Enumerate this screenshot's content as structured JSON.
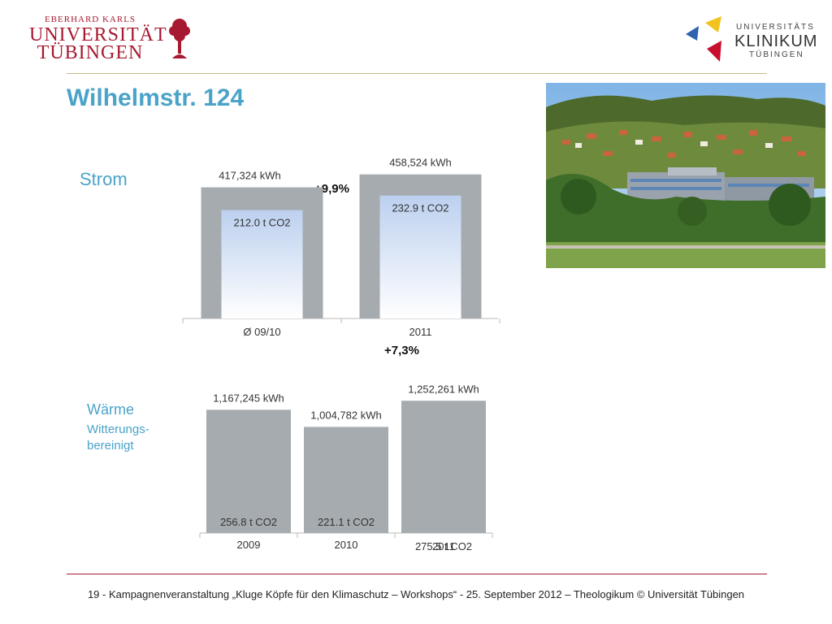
{
  "header": {
    "uni_logo_line1": "EBERHARD KARLS",
    "uni_logo_line2": "UNIVERSITÄT",
    "uni_logo_line3": "TÜBINGEN",
    "klinikum_line1": "UNIVERSITÄTS",
    "klinikum_line2": "KLINIKUM",
    "klinikum_line3": "TÜBINGEN"
  },
  "slide_title": "Wilhelmstr. 124",
  "strom": {
    "label": "Strom",
    "change": "+9,9%"
  },
  "waerme": {
    "label": "Wärme",
    "sublabel_line1": "Witterungs-",
    "sublabel_line2": "bereinigt",
    "change": "+7,3%"
  },
  "chart_data": [
    {
      "type": "bar",
      "categories": [
        "Ø 09/10",
        "2011"
      ],
      "series": [
        {
          "name": "kWh",
          "values": [
            417324,
            458524
          ],
          "labels": [
            "417,324 kWh",
            "458,524 kWh"
          ]
        },
        {
          "name": "t CO2",
          "values": [
            212.0,
            232.9
          ],
          "labels": [
            "212.0 t CO2",
            "232.9 t CO2"
          ]
        }
      ],
      "colors": {
        "kwh": "#a6abaf",
        "co2_top": "#bcd0ef",
        "co2_bottom": "#ffffff"
      }
    },
    {
      "type": "bar",
      "categories": [
        "2009",
        "2010",
        "2011"
      ],
      "series": [
        {
          "name": "kWh",
          "values": [
            1167245,
            1004782,
            1252261
          ],
          "labels": [
            "1,167,245 kWh",
            "1,004,782 kWh",
            "1,252,261 kWh"
          ]
        },
        {
          "name": "t CO2",
          "values": [
            256.8,
            221.1,
            275.5
          ],
          "labels": [
            "256.8 t CO2",
            "221.1 t CO2",
            "275.5 t CO2"
          ]
        }
      ],
      "colors": {
        "kwh": "#a6abaf"
      }
    }
  ],
  "footer": {
    "text": "19 -  Kampagnenveranstaltung „Kluge Köpfe für den Klimaschutz – Workshops“ - 25. September 2012 – Theologikum © Universität Tübingen"
  }
}
